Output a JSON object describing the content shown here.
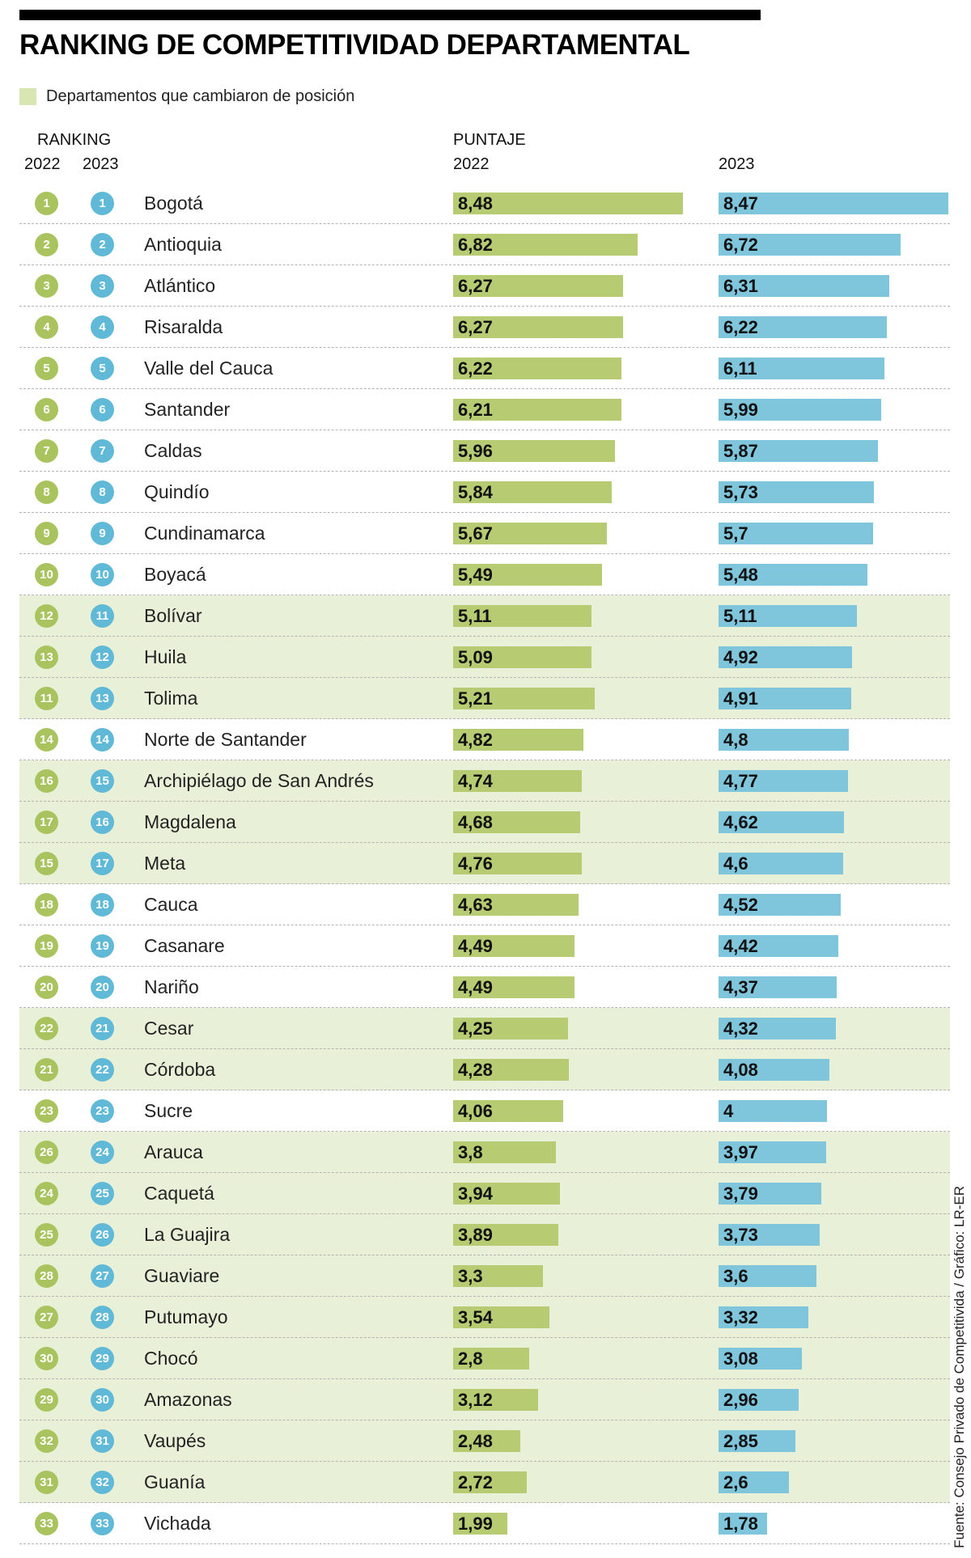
{
  "meta": {
    "title": "RANKING DE COMPETITIVIDAD DEPARTAMENTAL"
  },
  "legend": {
    "changed_label": "Departamentos que cambiaron de posición"
  },
  "columns": {
    "ranking_label": "RANKING",
    "puntaje_label": "PUNTAJE",
    "ranking_year_2022": "2022",
    "ranking_year_2023": "2023",
    "puntaje_year_2022": "2022",
    "puntaje_year_2023": "2023"
  },
  "source": "Fuente: Consejo Privado de Competitivida / Gráfico: LR-ER",
  "colors": {
    "bar_2022": "#b6cb72",
    "bar_2023": "#7fc5db",
    "badge_2022": "#a9c45f",
    "badge_2023": "#5fb9d7",
    "row_changed_bg": "#e9f0d8",
    "legend_swatch": "#d8e6b4",
    "top_rule": "#000000"
  },
  "chart_data": {
    "type": "bar",
    "orientation": "horizontal",
    "title": "RANKING DE COMPETITIVIDAD DEPARTAMENTAL",
    "series_labels": [
      "2022",
      "2023"
    ],
    "xlim": [
      0,
      8.6
    ],
    "grid": false,
    "legend_position": "top-left",
    "value_format": "comma-decimal",
    "rows": [
      {
        "rank_2022": "1",
        "rank_2023": "1",
        "name": "Bogotá",
        "score_2022": 8.48,
        "label_2022": "8,48",
        "score_2023": 8.47,
        "label_2023": "8,47",
        "changed": false
      },
      {
        "rank_2022": "2",
        "rank_2023": "2",
        "name": "Antioquia",
        "score_2022": 6.82,
        "label_2022": "6,82",
        "score_2023": 6.72,
        "label_2023": "6,72",
        "changed": false
      },
      {
        "rank_2022": "3",
        "rank_2023": "3",
        "name": "Atlántico",
        "score_2022": 6.27,
        "label_2022": "6,27",
        "score_2023": 6.31,
        "label_2023": "6,31",
        "changed": false
      },
      {
        "rank_2022": "4",
        "rank_2023": "4",
        "name": "Risaralda",
        "score_2022": 6.27,
        "label_2022": "6,27",
        "score_2023": 6.22,
        "label_2023": "6,22",
        "changed": false
      },
      {
        "rank_2022": "5",
        "rank_2023": "5",
        "name": "Valle del Cauca",
        "score_2022": 6.22,
        "label_2022": "6,22",
        "score_2023": 6.11,
        "label_2023": "6,11",
        "changed": false
      },
      {
        "rank_2022": "6",
        "rank_2023": "6",
        "name": "Santander",
        "score_2022": 6.21,
        "label_2022": "6,21",
        "score_2023": 5.99,
        "label_2023": "5,99",
        "changed": false
      },
      {
        "rank_2022": "7",
        "rank_2023": "7",
        "name": "Caldas",
        "score_2022": 5.96,
        "label_2022": "5,96",
        "score_2023": 5.87,
        "label_2023": "5,87",
        "changed": false
      },
      {
        "rank_2022": "8",
        "rank_2023": "8",
        "name": "Quindío",
        "score_2022": 5.84,
        "label_2022": "5,84",
        "score_2023": 5.73,
        "label_2023": "5,73",
        "changed": false
      },
      {
        "rank_2022": "9",
        "rank_2023": "9",
        "name": "Cundinamarca",
        "score_2022": 5.67,
        "label_2022": "5,67",
        "score_2023": 5.7,
        "label_2023": "5,7",
        "changed": false
      },
      {
        "rank_2022": "10",
        "rank_2023": "10",
        "name": "Boyacá",
        "score_2022": 5.49,
        "label_2022": "5,49",
        "score_2023": 5.48,
        "label_2023": "5,48",
        "changed": false
      },
      {
        "rank_2022": "12",
        "rank_2023": "11",
        "name": "Bolívar",
        "score_2022": 5.11,
        "label_2022": "5,11",
        "score_2023": 5.11,
        "label_2023": "5,11",
        "changed": true
      },
      {
        "rank_2022": "13",
        "rank_2023": "12",
        "name": "Huila",
        "score_2022": 5.09,
        "label_2022": "5,09",
        "score_2023": 4.92,
        "label_2023": "4,92",
        "changed": true
      },
      {
        "rank_2022": "11",
        "rank_2023": "13",
        "name": "Tolima",
        "score_2022": 5.21,
        "label_2022": "5,21",
        "score_2023": 4.91,
        "label_2023": "4,91",
        "changed": true
      },
      {
        "rank_2022": "14",
        "rank_2023": "14",
        "name": "Norte de Santander",
        "score_2022": 4.82,
        "label_2022": "4,82",
        "score_2023": 4.8,
        "label_2023": "4,8",
        "changed": false
      },
      {
        "rank_2022": "16",
        "rank_2023": "15",
        "name": "Archipiélago de San Andrés",
        "score_2022": 4.74,
        "label_2022": "4,74",
        "score_2023": 4.77,
        "label_2023": "4,77",
        "changed": true
      },
      {
        "rank_2022": "17",
        "rank_2023": "16",
        "name": "Magdalena",
        "score_2022": 4.68,
        "label_2022": "4,68",
        "score_2023": 4.62,
        "label_2023": "4,62",
        "changed": true
      },
      {
        "rank_2022": "15",
        "rank_2023": "17",
        "name": "Meta",
        "score_2022": 4.76,
        "label_2022": "4,76",
        "score_2023": 4.6,
        "label_2023": "4,6",
        "changed": true
      },
      {
        "rank_2022": "18",
        "rank_2023": "18",
        "name": "Cauca",
        "score_2022": 4.63,
        "label_2022": "4,63",
        "score_2023": 4.52,
        "label_2023": "4,52",
        "changed": false
      },
      {
        "rank_2022": "19",
        "rank_2023": "19",
        "name": "Casanare",
        "score_2022": 4.49,
        "label_2022": "4,49",
        "score_2023": 4.42,
        "label_2023": "4,42",
        "changed": false
      },
      {
        "rank_2022": "20",
        "rank_2023": "20",
        "name": "Nariño",
        "score_2022": 4.49,
        "label_2022": "4,49",
        "score_2023": 4.37,
        "label_2023": "4,37",
        "changed": false
      },
      {
        "rank_2022": "22",
        "rank_2023": "21",
        "name": "Cesar",
        "score_2022": 4.25,
        "label_2022": "4,25",
        "score_2023": 4.32,
        "label_2023": "4,32",
        "changed": true
      },
      {
        "rank_2022": "21",
        "rank_2023": "22",
        "name": "Córdoba",
        "score_2022": 4.28,
        "label_2022": "4,28",
        "score_2023": 4.08,
        "label_2023": "4,08",
        "changed": true
      },
      {
        "rank_2022": "23",
        "rank_2023": "23",
        "name": "Sucre",
        "score_2022": 4.06,
        "label_2022": "4,06",
        "score_2023": 4,
        "label_2023": "4",
        "changed": false
      },
      {
        "rank_2022": "26",
        "rank_2023": "24",
        "name": "Arauca",
        "score_2022": 3.8,
        "label_2022": "3,8",
        "score_2023": 3.97,
        "label_2023": "3,97",
        "changed": true
      },
      {
        "rank_2022": "24",
        "rank_2023": "25",
        "name": "Caquetá",
        "score_2022": 3.94,
        "label_2022": "3,94",
        "score_2023": 3.79,
        "label_2023": "3,79",
        "changed": true
      },
      {
        "rank_2022": "25",
        "rank_2023": "26",
        "name": "La Guajira",
        "score_2022": 3.89,
        "label_2022": "3,89",
        "score_2023": 3.73,
        "label_2023": "3,73",
        "changed": true
      },
      {
        "rank_2022": "28",
        "rank_2023": "27",
        "name": "Guaviare",
        "score_2022": 3.3,
        "label_2022": "3,3",
        "score_2023": 3.6,
        "label_2023": "3,6",
        "changed": true
      },
      {
        "rank_2022": "27",
        "rank_2023": "28",
        "name": "Putumayo",
        "score_2022": 3.54,
        "label_2022": "3,54",
        "score_2023": 3.32,
        "label_2023": "3,32",
        "changed": true
      },
      {
        "rank_2022": "30",
        "rank_2023": "29",
        "name": "Chocó",
        "score_2022": 2.8,
        "label_2022": "2,8",
        "score_2023": 3.08,
        "label_2023": "3,08",
        "changed": true
      },
      {
        "rank_2022": "29",
        "rank_2023": "30",
        "name": "Amazonas",
        "score_2022": 3.12,
        "label_2022": "3,12",
        "score_2023": 2.96,
        "label_2023": "2,96",
        "changed": true
      },
      {
        "rank_2022": "32",
        "rank_2023": "31",
        "name": "Vaupés",
        "score_2022": 2.48,
        "label_2022": "2,48",
        "score_2023": 2.85,
        "label_2023": "2,85",
        "changed": true
      },
      {
        "rank_2022": "31",
        "rank_2023": "32",
        "name": "Guanía",
        "score_2022": 2.72,
        "label_2022": "2,72",
        "score_2023": 2.6,
        "label_2023": "2,6",
        "changed": true
      },
      {
        "rank_2022": "33",
        "rank_2023": "33",
        "name": "Vichada",
        "score_2022": 1.99,
        "label_2022": "1,99",
        "score_2023": 1.78,
        "label_2023": "1,78",
        "changed": false
      }
    ]
  }
}
